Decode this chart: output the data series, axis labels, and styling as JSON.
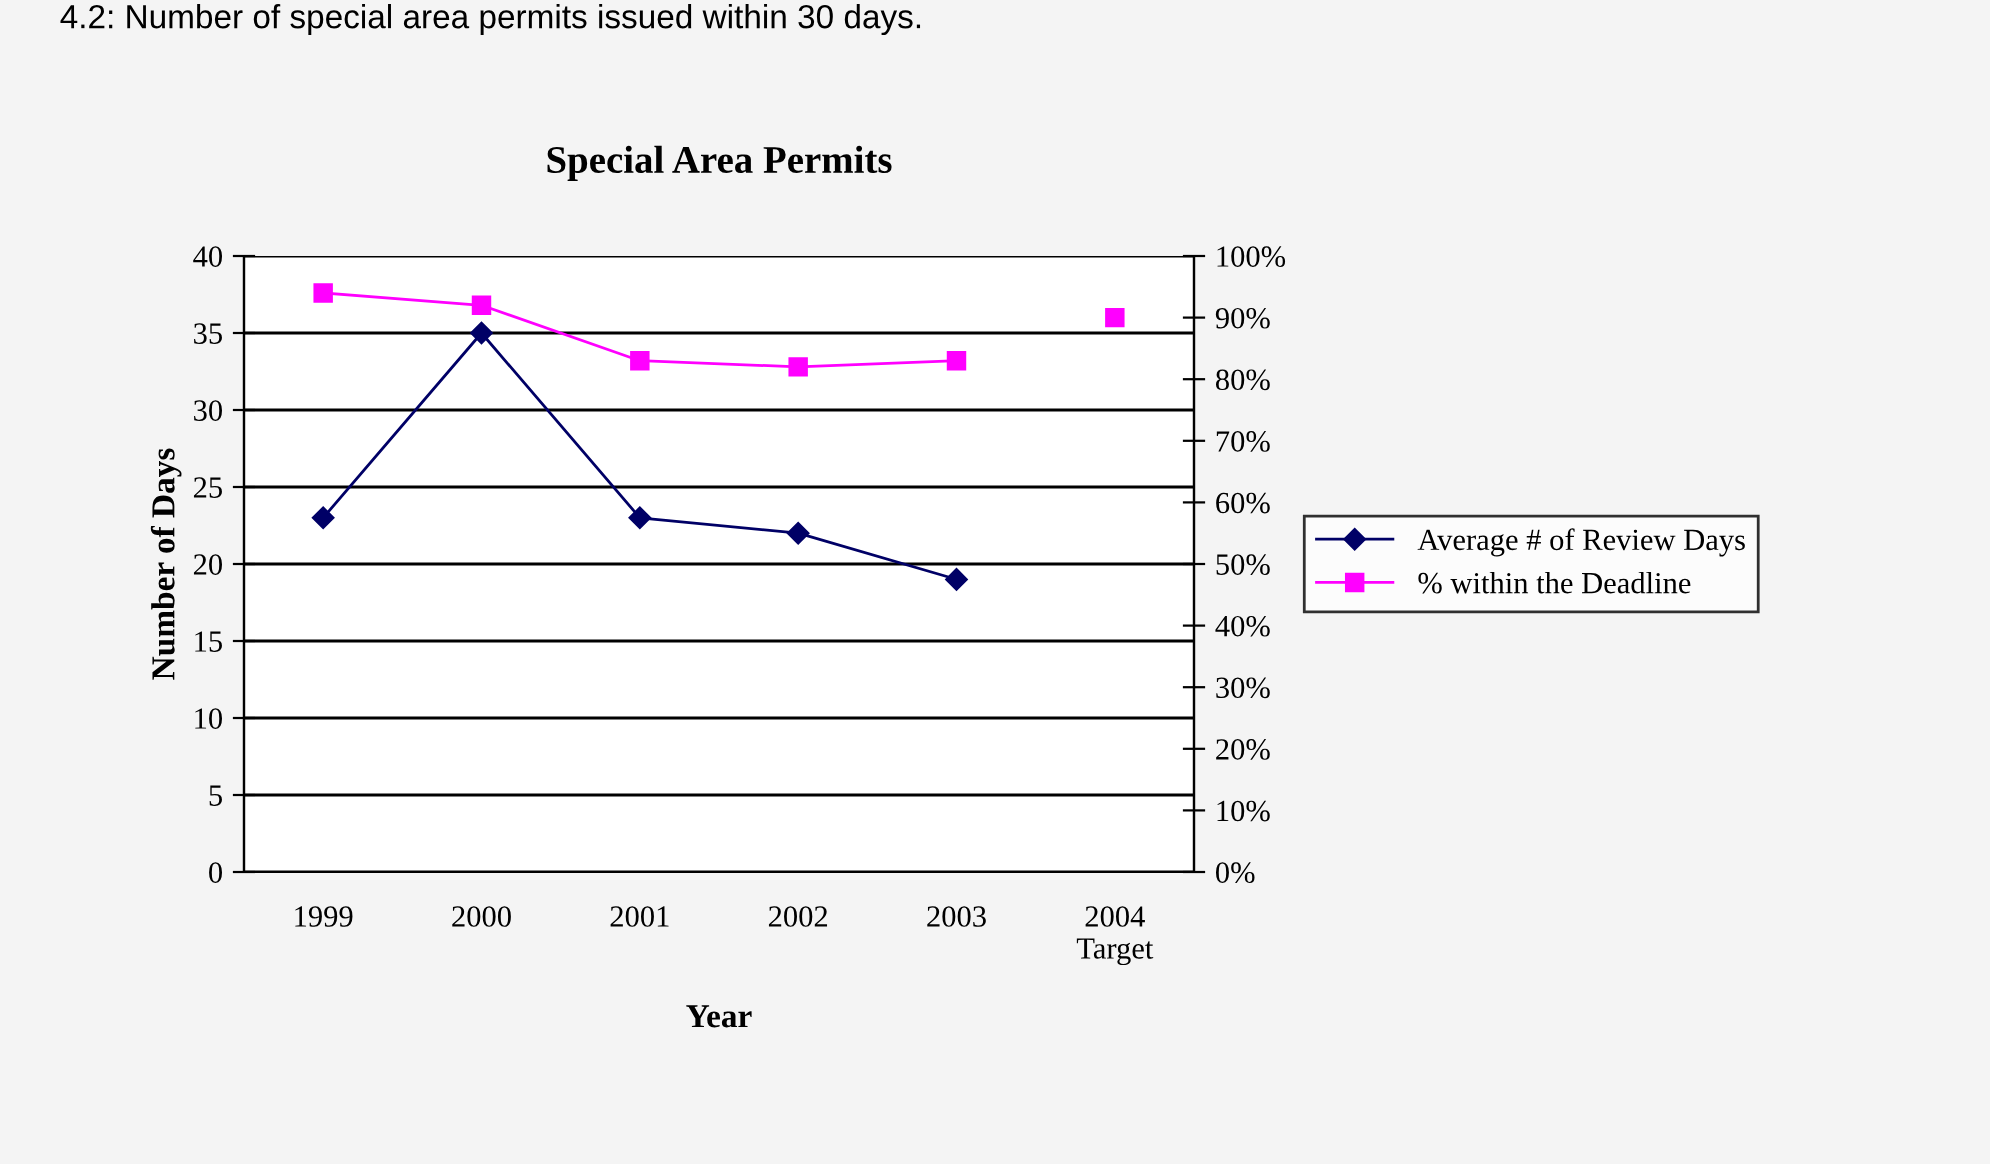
{
  "chart_data": {
    "type": "line",
    "title": "Special Area Permits",
    "xlabel": "Year",
    "ylabel": "Number of Days",
    "annotations": [
      "4.2: Number of special area permits issued within 30 days."
    ],
    "categories": [
      "1999",
      "2000",
      "2001",
      "2002",
      "2003",
      "2004\nTarget"
    ],
    "series": [
      {
        "name": "Average # of Review Days",
        "color": "#000066",
        "marker": "diamond",
        "values": [
          23,
          35,
          23,
          22,
          19,
          null
        ]
      },
      {
        "name": "% within the Deadline",
        "color": "#ff00ff",
        "marker": "square",
        "axis": "y2",
        "values": [
          94,
          92,
          83,
          82,
          83,
          null
        ]
      },
      {
        "type": "scatter",
        "color": "#ff00ff",
        "marker": "square",
        "axis": "y2",
        "values": [
          null,
          null,
          null,
          null,
          null,
          90
        ]
      }
    ],
    "ylim": [
      0,
      40
    ],
    "yticks": [
      0,
      5,
      10,
      15,
      20,
      25,
      30,
      35,
      40
    ],
    "y2lim": [
      0,
      100
    ],
    "y2ticks": [
      {
        "value": 0,
        "label": "0%"
      },
      {
        "value": 10,
        "label": "10%"
      },
      {
        "value": 20,
        "label": "20%"
      },
      {
        "value": 30,
        "label": "30%"
      },
      {
        "value": 40,
        "label": "40%"
      },
      {
        "value": 50,
        "label": "50%"
      },
      {
        "value": 60,
        "label": "60%"
      },
      {
        "value": 70,
        "label": "70%"
      },
      {
        "value": 80,
        "label": "80%"
      },
      {
        "value": 90,
        "label": "90%"
      },
      {
        "value": 100,
        "label": "100%"
      }
    ],
    "grid": "y",
    "legend": "right",
    "line_style": "solid"
  }
}
